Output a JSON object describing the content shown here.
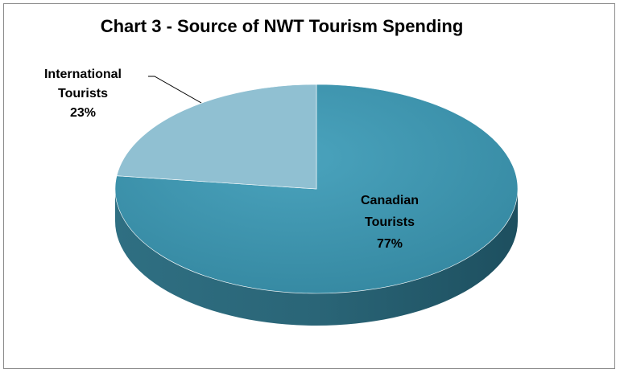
{
  "chart_data": {
    "type": "pie",
    "title": "Chart 3 - Source of NWT Tourism Spending",
    "slices": [
      {
        "label": "Canadian Tourists",
        "label_lines": [
          "Canadian",
          "Tourists"
        ],
        "value": 77,
        "value_text": "77%",
        "color": "#3d96b0"
      },
      {
        "label": "International Tourists",
        "label_lines": [
          "International",
          "Tourists"
        ],
        "value": 23,
        "value_text": "23%",
        "color": "#90c0d2"
      }
    ],
    "style": "3d",
    "legend": "none"
  }
}
